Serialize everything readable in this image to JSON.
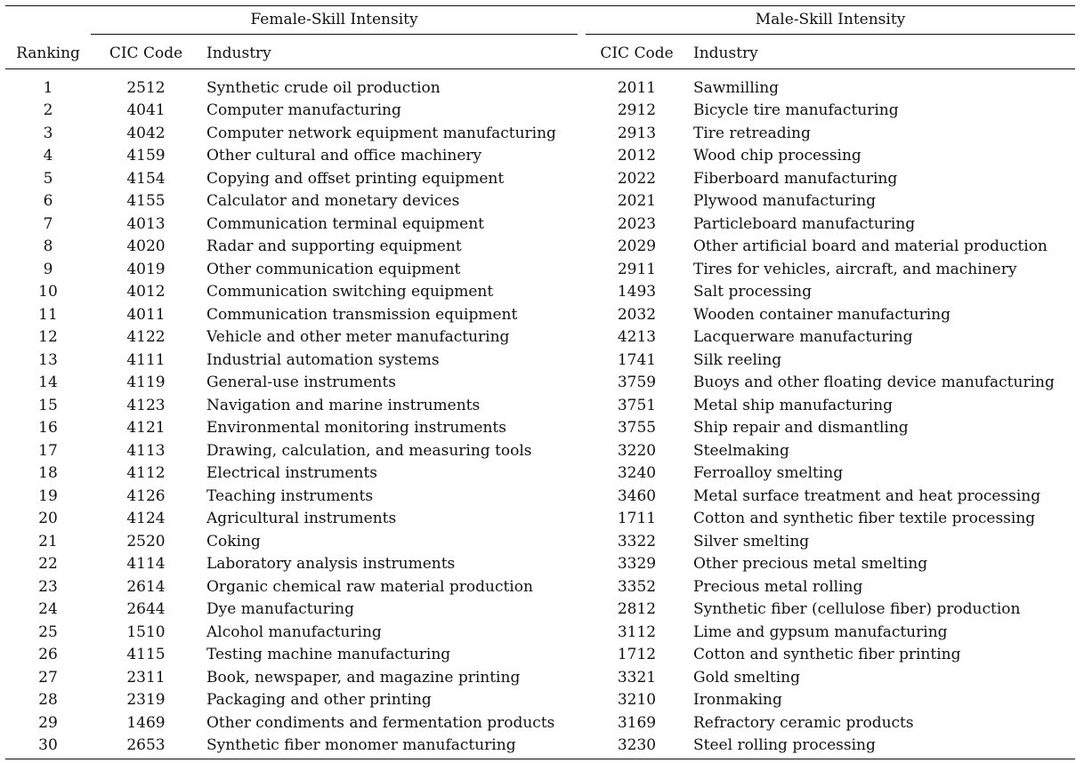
{
  "header": {
    "female_group": "Female-Skill Intensity",
    "male_group": "Male-Skill Intensity",
    "col_ranking": "Ranking",
    "col_code_f": "CIC Code",
    "col_industry_f": "Industry",
    "col_code_m": "CIC Code",
    "col_industry_m": "Industry"
  },
  "rows": [
    {
      "rank": "1",
      "f_code": "2512",
      "f_industry": "Synthetic crude oil production",
      "m_code": "2011",
      "m_industry": "Sawmilling"
    },
    {
      "rank": "2",
      "f_code": "4041",
      "f_industry": "Computer manufacturing",
      "m_code": "2912",
      "m_industry": "Bicycle tire manufacturing"
    },
    {
      "rank": "3",
      "f_code": "4042",
      "f_industry": "Computer network equipment manufacturing",
      "m_code": "2913",
      "m_industry": "Tire retreading"
    },
    {
      "rank": "4",
      "f_code": "4159",
      "f_industry": "Other cultural and office machinery",
      "m_code": "2012",
      "m_industry": "Wood chip processing"
    },
    {
      "rank": "5",
      "f_code": "4154",
      "f_industry": "Copying and offset printing equipment",
      "m_code": "2022",
      "m_industry": "Fiberboard manufacturing"
    },
    {
      "rank": "6",
      "f_code": "4155",
      "f_industry": "Calculator and monetary devices",
      "m_code": "2021",
      "m_industry": "Plywood manufacturing"
    },
    {
      "rank": "7",
      "f_code": "4013",
      "f_industry": "Communication terminal equipment",
      "m_code": "2023",
      "m_industry": "Particleboard manufacturing"
    },
    {
      "rank": "8",
      "f_code": "4020",
      "f_industry": "Radar and supporting equipment",
      "m_code": "2029",
      "m_industry": "Other artificial board and material production"
    },
    {
      "rank": "9",
      "f_code": "4019",
      "f_industry": "Other communication equipment",
      "m_code": "2911",
      "m_industry": "Tires for vehicles, aircraft, and machinery"
    },
    {
      "rank": "10",
      "f_code": "4012",
      "f_industry": "Communication switching equipment",
      "m_code": "1493",
      "m_industry": "Salt processing"
    },
    {
      "rank": "11",
      "f_code": "4011",
      "f_industry": "Communication transmission equipment",
      "m_code": "2032",
      "m_industry": "Wooden container manufacturing"
    },
    {
      "rank": "12",
      "f_code": "4122",
      "f_industry": "Vehicle and other meter manufacturing",
      "m_code": "4213",
      "m_industry": "Lacquerware manufacturing"
    },
    {
      "rank": "13",
      "f_code": "4111",
      "f_industry": "Industrial automation systems",
      "m_code": "1741",
      "m_industry": "Silk reeling"
    },
    {
      "rank": "14",
      "f_code": "4119",
      "f_industry": "General-use instruments",
      "m_code": "3759",
      "m_industry": "Buoys and other floating device manufacturing"
    },
    {
      "rank": "15",
      "f_code": "4123",
      "f_industry": "Navigation and marine instruments",
      "m_code": "3751",
      "m_industry": "Metal ship manufacturing"
    },
    {
      "rank": "16",
      "f_code": "4121",
      "f_industry": "Environmental monitoring instruments",
      "m_code": "3755",
      "m_industry": "Ship repair and dismantling"
    },
    {
      "rank": "17",
      "f_code": "4113",
      "f_industry": "Drawing, calculation, and measuring tools",
      "m_code": "3220",
      "m_industry": "Steelmaking"
    },
    {
      "rank": "18",
      "f_code": "4112",
      "f_industry": "Electrical instruments",
      "m_code": "3240",
      "m_industry": "Ferroalloy smelting"
    },
    {
      "rank": "19",
      "f_code": "4126",
      "f_industry": "Teaching instruments",
      "m_code": "3460",
      "m_industry": "Metal surface treatment and heat processing"
    },
    {
      "rank": "20",
      "f_code": "4124",
      "f_industry": "Agricultural instruments",
      "m_code": "1711",
      "m_industry": "Cotton and synthetic fiber textile processing"
    },
    {
      "rank": "21",
      "f_code": "2520",
      "f_industry": "Coking",
      "m_code": "3322",
      "m_industry": "Silver smelting"
    },
    {
      "rank": "22",
      "f_code": "4114",
      "f_industry": "Laboratory analysis instruments",
      "m_code": "3329",
      "m_industry": "Other precious metal smelting"
    },
    {
      "rank": "23",
      "f_code": "2614",
      "f_industry": "Organic chemical raw material production",
      "m_code": "3352",
      "m_industry": "Precious metal rolling"
    },
    {
      "rank": "24",
      "f_code": "2644",
      "f_industry": "Dye manufacturing",
      "m_code": "2812",
      "m_industry": "Synthetic fiber (cellulose fiber) production"
    },
    {
      "rank": "25",
      "f_code": "1510",
      "f_industry": "Alcohol manufacturing",
      "m_code": "3112",
      "m_industry": "Lime and gypsum manufacturing"
    },
    {
      "rank": "26",
      "f_code": "4115",
      "f_industry": "Testing machine manufacturing",
      "m_code": "1712",
      "m_industry": "Cotton and synthetic fiber printing"
    },
    {
      "rank": "27",
      "f_code": "2311",
      "f_industry": "Book, newspaper, and magazine printing",
      "m_code": "3321",
      "m_industry": "Gold smelting"
    },
    {
      "rank": "28",
      "f_code": "2319",
      "f_industry": "Packaging and other printing",
      "m_code": "3210",
      "m_industry": "Ironmaking"
    },
    {
      "rank": "29",
      "f_code": "1469",
      "f_industry": "Other condiments and fermentation products",
      "m_code": "3169",
      "m_industry": "Refractory ceramic products"
    },
    {
      "rank": "30",
      "f_code": "2653",
      "f_industry": "Synthetic fiber monomer manufacturing",
      "m_code": "3230",
      "m_industry": "Steel rolling processing"
    }
  ]
}
